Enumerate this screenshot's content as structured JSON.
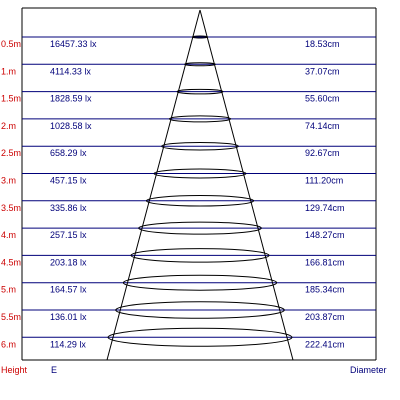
{
  "colors": {
    "height_label": "#cc0000",
    "text": "#00007a",
    "row_line": "#00007a",
    "frame": "#000000",
    "cone": "#000000",
    "footer_label": "#00007a"
  },
  "rows": [
    {
      "height": "0.5m",
      "illuminance": "16457.33 lx",
      "diameter": "18.53cm"
    },
    {
      "height": "1.m",
      "illuminance": "4114.33 lx",
      "diameter": "37.07cm"
    },
    {
      "height": "1.5m",
      "illuminance": "1828.59 lx",
      "diameter": "55.60cm"
    },
    {
      "height": "2.m",
      "illuminance": "1028.58 lx",
      "diameter": "74.14cm"
    },
    {
      "height": "2.5m",
      "illuminance": "658.29 lx",
      "diameter": "92.67cm"
    },
    {
      "height": "3.m",
      "illuminance": "457.15 lx",
      "diameter": "111.20cm"
    },
    {
      "height": "3.5m",
      "illuminance": "335.86 lx",
      "diameter": "129.74cm"
    },
    {
      "height": "4.m",
      "illuminance": "257.15 lx",
      "diameter": "148.27cm"
    },
    {
      "height": "4.5m",
      "illuminance": "203.18 lx",
      "diameter": "166.81cm"
    },
    {
      "height": "5.m",
      "illuminance": "164.57 lx",
      "diameter": "185.34cm"
    },
    {
      "height": "5.5m",
      "illuminance": "136.01 lx",
      "diameter": "203.87cm"
    },
    {
      "height": "6.m",
      "illuminance": "114.29 lx",
      "diameter": "222.41cm"
    }
  ],
  "footer": {
    "height_label": "Height",
    "illuminance_label": "E",
    "diameter_label": "Diameter"
  }
}
